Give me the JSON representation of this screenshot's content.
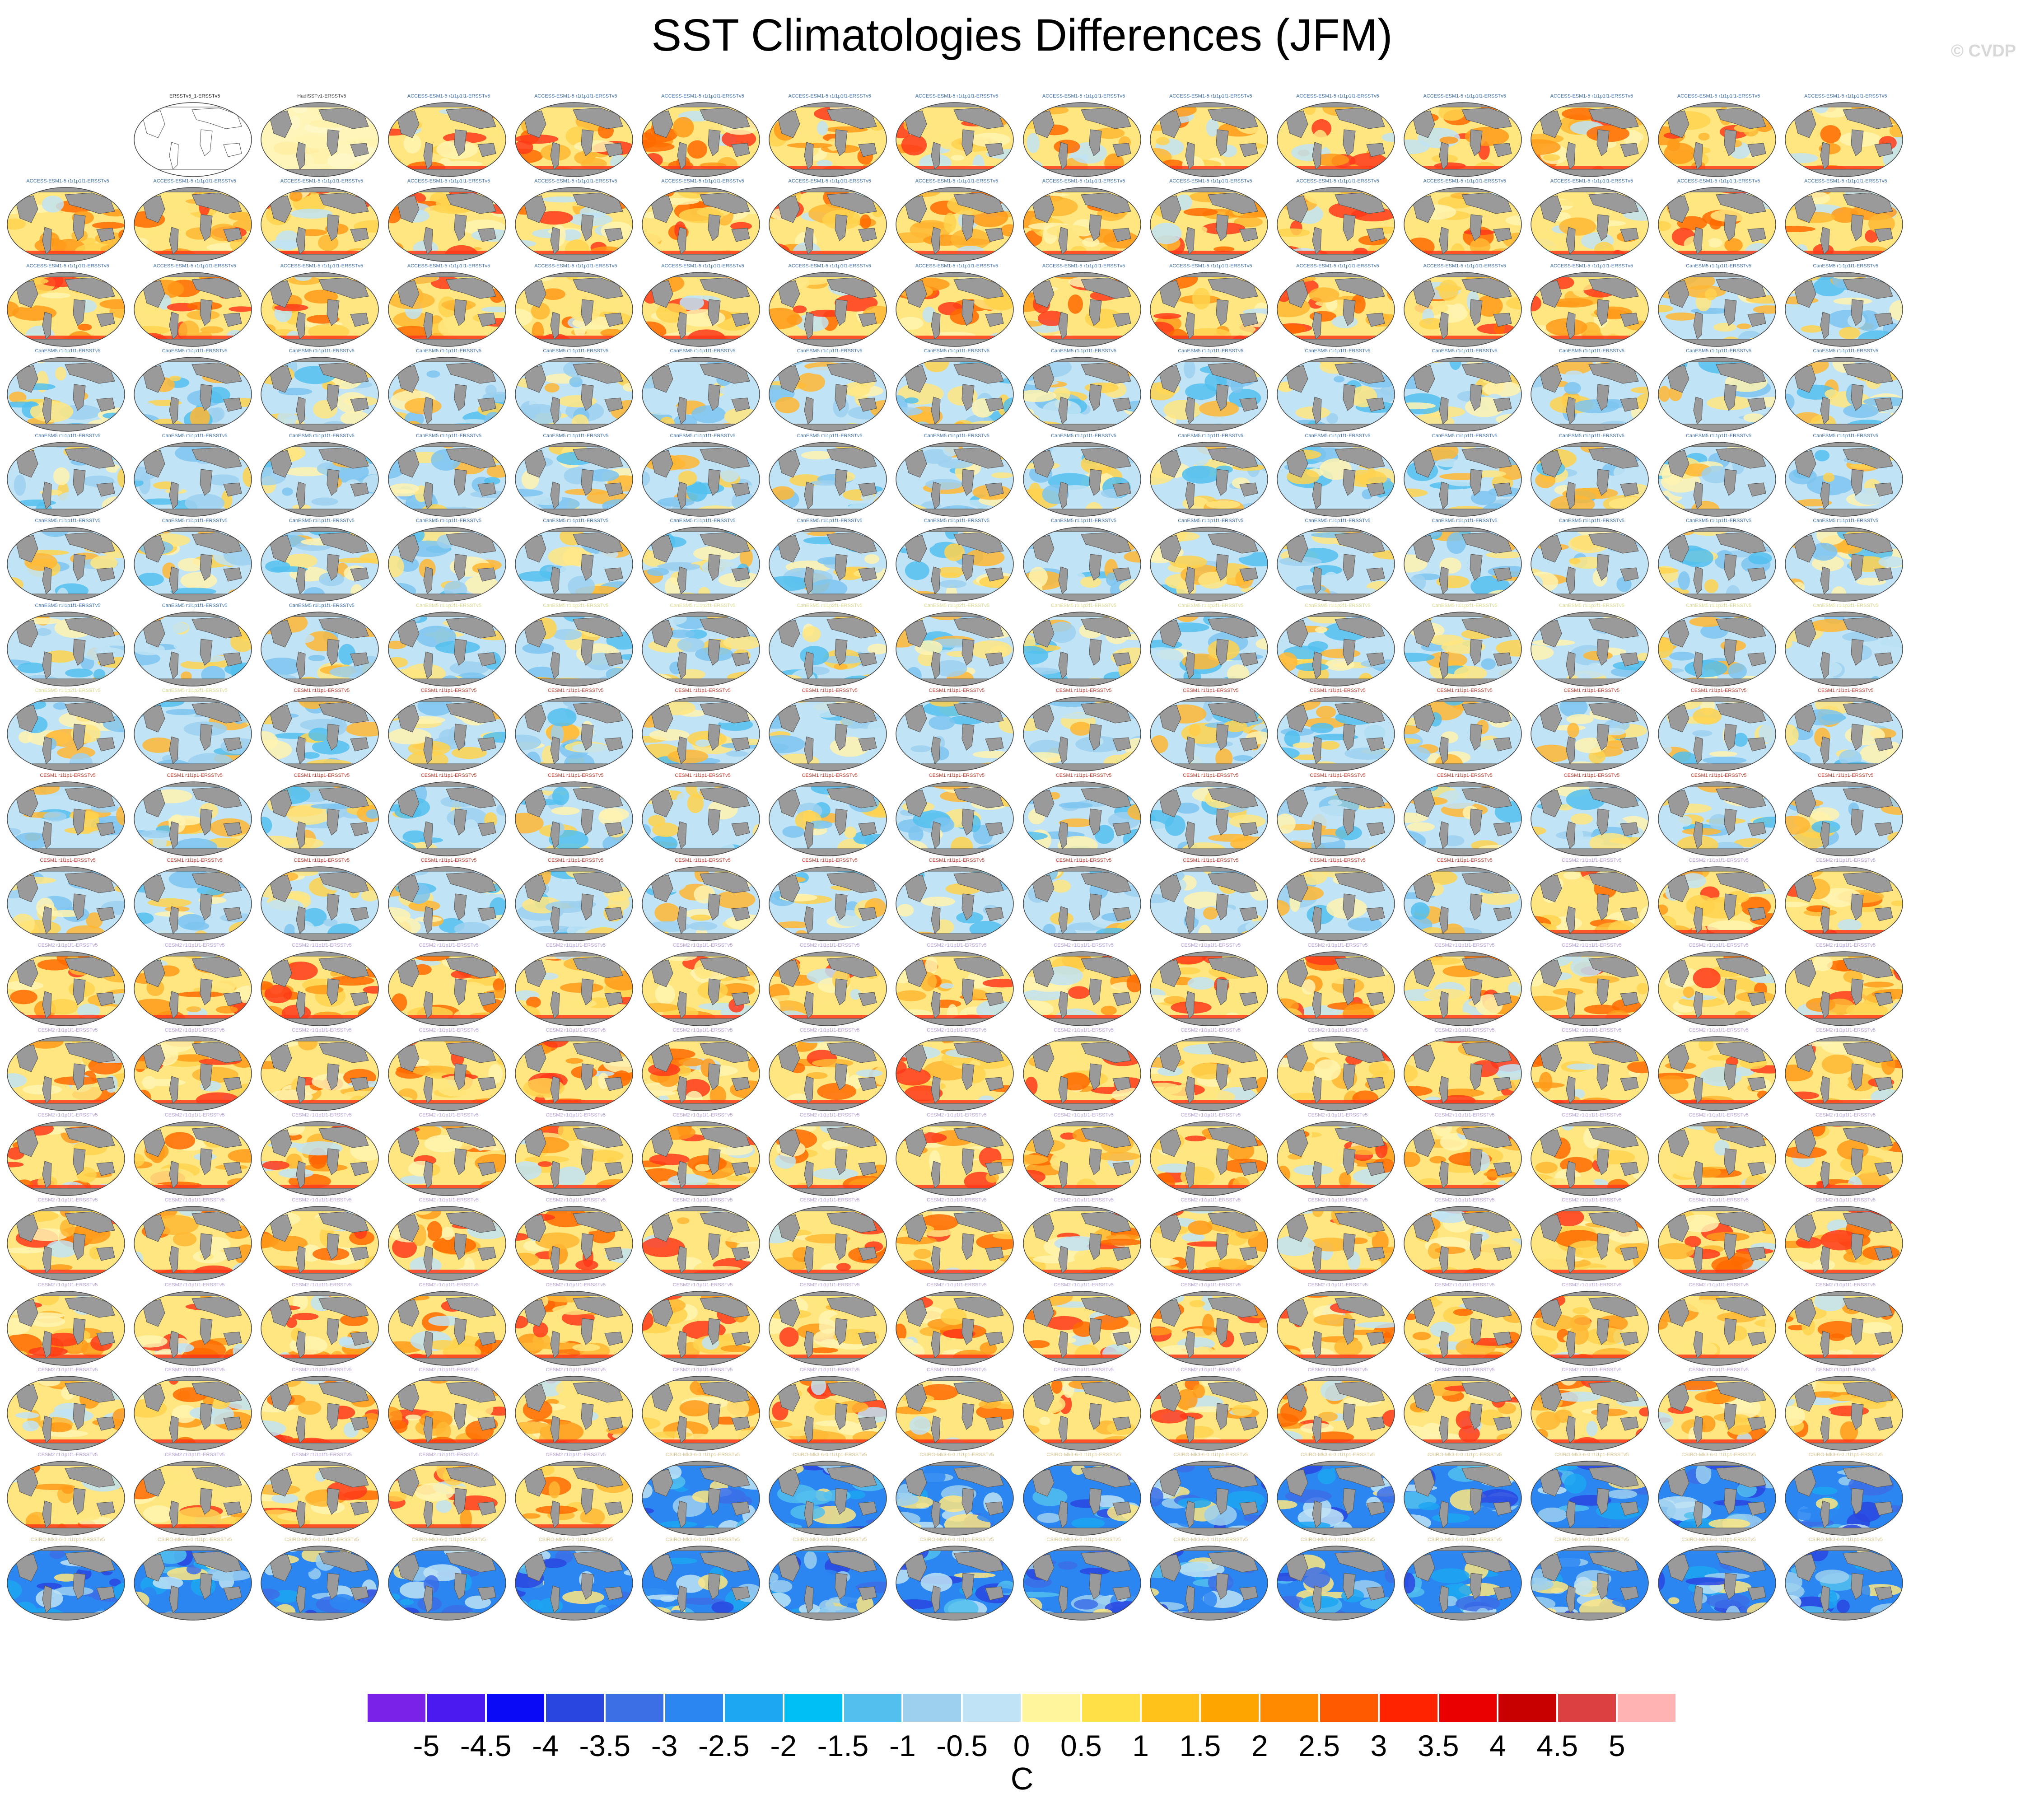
{
  "figure": {
    "title": "SST Climatologies Differences (JFM)",
    "watermark": "© CVDP",
    "units_label": "C"
  },
  "colorbar": {
    "colors": [
      "#7b22e8",
      "#4a1af0",
      "#0a0af6",
      "#2a46e0",
      "#3c6ee6",
      "#2b86f2",
      "#1da6f2",
      "#00bff5",
      "#52c0ef",
      "#9cd0ee",
      "#c0e3f5",
      "#fff59c",
      "#ffe047",
      "#ffc21a",
      "#ffa500",
      "#ff8a00",
      "#ff5a00",
      "#ff2400",
      "#eb0000",
      "#c80000",
      "#dc4040",
      "#ffb3b3"
    ],
    "tick_labels": [
      "-5",
      "-4.5",
      "-4",
      "-3.5",
      "-3",
      "-2.5",
      "-2",
      "-1.5",
      "-1",
      "-0.5",
      "0",
      "0.5",
      "1",
      "1.5",
      "2",
      "2.5",
      "3",
      "3.5",
      "4",
      "4.5",
      "5"
    ]
  },
  "panels": {
    "rows": 18,
    "cols": 15,
    "first_row_offset": 1,
    "reference_label": "ERSSTv5_1-ERSSTv5",
    "groups": [
      {
        "label": "HadISSTv1-ERSSTv5",
        "count": 1,
        "tone": "pale",
        "label_color": "#444444"
      },
      {
        "label": "ACCESS-ESM1-5 r1i1p1f1-ERSSTv5",
        "count": 40,
        "tone": "warm",
        "label_color": "#3a6fb0"
      },
      {
        "label": "CanESM5 r1i1p1f1-ERSSTv5",
        "count": 50,
        "tone": "cool",
        "label_color": "#3a6fb0"
      },
      {
        "label": "CanESM5 r1i1p2f1-ERSSTv5",
        "count": 14,
        "tone": "cool",
        "label_color": "#d9d98a"
      },
      {
        "label": "CESM1 r1i1p1-ERSSTv5",
        "count": 40,
        "tone": "cool",
        "label_color": "#c0392b"
      },
      {
        "label": "CESM2 r1i1p1f1-ERSSTv5",
        "count": 98,
        "tone": "warm",
        "label_color": "#b39ddb"
      },
      {
        "label": "CSIRO-Mk3-6-0 r1i1p1-ERSSTv5",
        "count": 26,
        "tone": "blue",
        "label_color": "#d9c48a"
      }
    ]
  }
}
